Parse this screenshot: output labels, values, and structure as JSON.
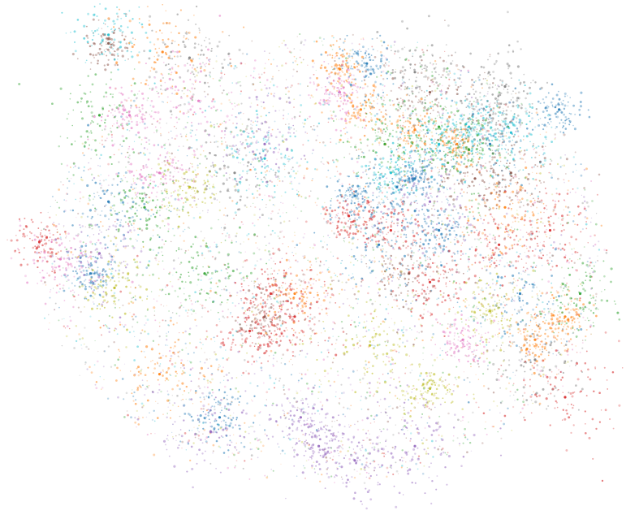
{
  "chart_data": {
    "type": "scatter",
    "title": "",
    "xlabel": "",
    "ylabel": "",
    "xlim": [
      -100,
      100
    ],
    "ylim": [
      -85,
      85
    ],
    "grid": false,
    "axes_visible": false,
    "legend": "none",
    "palette": [
      "#1f77b4",
      "#ff7f0e",
      "#2ca02c",
      "#d62728",
      "#9467bd",
      "#8c564b",
      "#e377c2",
      "#7f7f7f",
      "#bcbd22",
      "#17becf"
    ],
    "point_opacity": 0.55,
    "series": [
      {
        "color_index": 0,
        "x": [
          -72,
          24,
          10,
          18,
          30,
          38,
          -35,
          55,
          65,
          78,
          -78,
          14
        ],
        "y": [
          20,
          25,
          22,
          5,
          28,
          10,
          -55,
          40,
          -12,
          52,
          -5,
          68
        ]
      },
      {
        "color_index": 1,
        "x": [
          -54,
          5,
          12,
          30,
          44,
          60,
          -55,
          70,
          80,
          -10
        ],
        "y": [
          72,
          66,
          52,
          45,
          40,
          18,
          -40,
          -28,
          -20,
          -12
        ]
      },
      {
        "color_index": 2,
        "x": [
          -75,
          38,
          48,
          -60,
          85,
          -40,
          20
        ],
        "y": [
          50,
          46,
          38,
          18,
          -12,
          -5,
          40
        ]
      },
      {
        "color_index": 3,
        "x": [
          -18,
          -25,
          8,
          22,
          35,
          -95,
          75,
          80,
          -10,
          58
        ],
        "y": [
          -12,
          -25,
          15,
          10,
          -8,
          6,
          10,
          -48,
          -20,
          5
        ]
      },
      {
        "color_index": 4,
        "x": [
          -2,
          -8,
          10,
          -75,
          -38,
          -20,
          30,
          35
        ],
        "y": [
          -65,
          -55,
          -70,
          2,
          -60,
          40,
          -65,
          20
        ]
      },
      {
        "color_index": 5,
        "x": [
          -72,
          35,
          50,
          -20,
          28,
          62
        ],
        "y": [
          75,
          58,
          28,
          -20,
          -5,
          30
        ]
      },
      {
        "color_index": 6,
        "x": [
          -65,
          -88,
          -42,
          5,
          46,
          -55
        ],
        "y": [
          50,
          0,
          55,
          58,
          -28,
          30
        ]
      },
      {
        "color_index": 7,
        "x": [
          -45,
          30,
          55,
          60,
          -30,
          70
        ],
        "y": [
          70,
          65,
          50,
          60,
          30,
          -35
        ]
      },
      {
        "color_index": 8,
        "x": [
          -70,
          35,
          15,
          -45,
          55
        ],
        "y": [
          -10,
          -45,
          -30,
          25,
          -18
        ]
      },
      {
        "color_index": 9,
        "x": [
          48,
          38,
          -72,
          62,
          22,
          -20
        ],
        "y": [
          46,
          40,
          78,
          44,
          30,
          35
        ]
      }
    ]
  }
}
